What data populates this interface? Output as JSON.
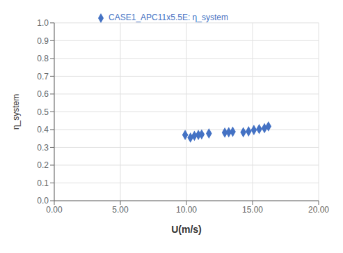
{
  "chart_data": {
    "type": "scatter",
    "xlabel": "U(m/s)",
    "ylabel": "η_system",
    "x": [
      9.9,
      10.3,
      10.6,
      10.9,
      11.15,
      11.7,
      12.9,
      13.2,
      13.5,
      14.3,
      14.7,
      15.1,
      15.5,
      15.9,
      16.2
    ],
    "series": [
      {
        "name": "CASE1_APC11x5.5E: η_system",
        "color": "#4472C4",
        "marker": "diamond",
        "values": [
          0.37,
          0.355,
          0.365,
          0.37,
          0.373,
          0.378,
          0.383,
          0.385,
          0.388,
          0.385,
          0.39,
          0.398,
          0.403,
          0.408,
          0.418
        ]
      }
    ],
    "xlim": [
      0.0,
      20.0
    ],
    "ylim": [
      0.0,
      1.0
    ],
    "xticks": [
      {
        "value": 0.0,
        "label": "0.00"
      },
      {
        "value": 5.0,
        "label": "5.00"
      },
      {
        "value": 10.0,
        "label": "10.00"
      },
      {
        "value": 15.0,
        "label": "15.00"
      },
      {
        "value": 20.0,
        "label": "20.00"
      }
    ],
    "yticks": [
      {
        "value": 0.0,
        "label": "0.0"
      },
      0.1,
      0.2,
      0.3,
      0.4,
      0.5,
      0.6,
      0.7,
      0.8,
      0.9,
      {
        "value": 1.0,
        "label": "1.0"
      }
    ],
    "grid": true,
    "legend": "top"
  }
}
